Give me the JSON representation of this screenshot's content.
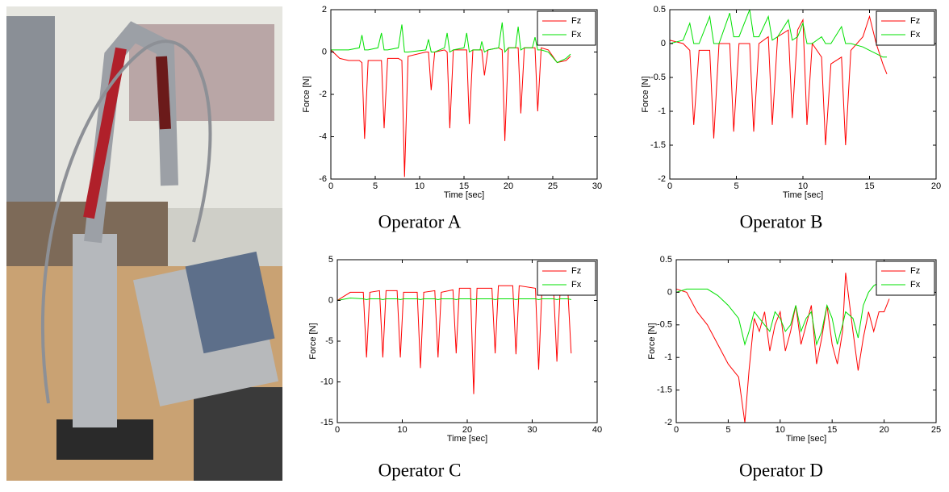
{
  "chart_data": [
    {
      "type": "line",
      "caption": "Operator A",
      "xlabel": "Time [sec]",
      "ylabel": "Force [N]",
      "xlim": [
        0,
        30
      ],
      "xticks": [
        0,
        5,
        10,
        15,
        20,
        25,
        30
      ],
      "ylim": [
        -6,
        2
      ],
      "yticks": [
        -6,
        -4,
        -2,
        0,
        2
      ],
      "legend": "upper right",
      "x": [
        0,
        1,
        2,
        3.2,
        3.5,
        3.8,
        4.2,
        5.3,
        5.7,
        6.0,
        6.4,
        7.6,
        8.0,
        8.3,
        8.7,
        10.7,
        11.0,
        11.3,
        11.7,
        12.8,
        13.1,
        13.4,
        13.8,
        15.0,
        15.3,
        15.6,
        16.0,
        16.8,
        17.0,
        17.3,
        17.7,
        18.9,
        19.3,
        19.6,
        20.0,
        20.8,
        21.1,
        21.4,
        21.8,
        22.7,
        23.0,
        23.3,
        23.7,
        24.5,
        25.5,
        26.5,
        27
      ],
      "series": [
        {
          "name": "Fz",
          "color": "#ff0000",
          "values": [
            0.1,
            -0.3,
            -0.4,
            -0.4,
            -0.5,
            -4.1,
            -0.4,
            -0.4,
            -0.4,
            -3.6,
            -0.3,
            -0.3,
            -0.4,
            -5.9,
            -0.2,
            0,
            0,
            -1.8,
            0,
            0.1,
            0,
            -3.6,
            0.1,
            0.1,
            0.1,
            -3.4,
            0.1,
            0.1,
            0.1,
            -1.1,
            0.1,
            0.2,
            0.1,
            -4.2,
            0.2,
            0.2,
            0.2,
            -2.9,
            0.2,
            0.2,
            0.2,
            -2.8,
            0.2,
            0.1,
            -0.5,
            -0.4,
            -0.2
          ]
        },
        {
          "name": "Fx",
          "color": "#00e000",
          "values": [
            0.1,
            0.1,
            0.1,
            0.2,
            0.8,
            0.1,
            0.1,
            0.2,
            0.9,
            0.1,
            0.1,
            0.2,
            1.3,
            0,
            0,
            0.1,
            0.6,
            0,
            0,
            0.2,
            0.9,
            0,
            0.1,
            0.2,
            0.9,
            0,
            0.1,
            0.1,
            0.5,
            0,
            0.1,
            0.2,
            1.4,
            0,
            0.2,
            0.2,
            1.2,
            0.1,
            0.2,
            0.2,
            0.7,
            0.1,
            0.1,
            0,
            -0.5,
            -0.3,
            -0.1
          ]
        }
      ]
    },
    {
      "type": "line",
      "caption": "Operator B",
      "xlabel": "Time [sec]",
      "ylabel": "Force [N]",
      "xlim": [
        0,
        20
      ],
      "xticks": [
        0,
        5,
        10,
        15,
        20
      ],
      "ylim": [
        -2,
        0.5
      ],
      "yticks": [
        -2,
        -1.5,
        -1,
        -0.5,
        0,
        0.5
      ],
      "legend": "upper right",
      "x": [
        0,
        1,
        1.5,
        1.8,
        2.2,
        3.0,
        3.3,
        3.7,
        4.5,
        4.8,
        5.2,
        6.0,
        6.3,
        6.7,
        7.4,
        7.7,
        8.1,
        8.9,
        9.2,
        9.6,
        10.0,
        10.3,
        10.7,
        11.4,
        11.7,
        12.1,
        12.9,
        13.2,
        13.6,
        14.5,
        15.0,
        15.5,
        16.0,
        16.3
      ],
      "series": [
        {
          "name": "Fz",
          "color": "#ff0000",
          "values": [
            0.05,
            0,
            -0.1,
            -1.2,
            -0.1,
            -0.1,
            -1.4,
            0,
            0,
            -1.3,
            0,
            0,
            -1.3,
            0,
            0.1,
            -1.2,
            0.1,
            0.2,
            -1.1,
            0.2,
            0.35,
            -1.2,
            0,
            -0.2,
            -1.5,
            -0.3,
            -0.2,
            -1.5,
            -0.1,
            0.1,
            0.4,
            0,
            -0.3,
            -0.45
          ]
        },
        {
          "name": "Fx",
          "color": "#00e000",
          "values": [
            0,
            0.05,
            0.3,
            0,
            0,
            0.4,
            0,
            0,
            0.45,
            0.1,
            0.1,
            0.5,
            0.1,
            0.1,
            0.4,
            0.05,
            0.1,
            0.35,
            0.05,
            0.1,
            0.3,
            0,
            0,
            0.1,
            0,
            0,
            0.25,
            0,
            0,
            -0.05,
            -0.1,
            -0.15,
            -0.2,
            -0.2
          ]
        }
      ]
    },
    {
      "type": "line",
      "caption": "Operator C",
      "xlabel": "Time [sec]",
      "ylabel": "Force [N]",
      "xlim": [
        0,
        40
      ],
      "xticks": [
        0,
        10,
        20,
        30,
        40
      ],
      "ylim": [
        -15,
        5
      ],
      "yticks": [
        -15,
        -10,
        -5,
        0,
        5
      ],
      "legend": "upper right",
      "x": [
        0,
        2,
        4,
        4.5,
        5,
        6.5,
        7,
        7.5,
        9.2,
        9.7,
        10.2,
        12.3,
        12.8,
        13.3,
        15,
        15.5,
        16,
        17.8,
        18.3,
        18.8,
        20.5,
        21,
        21.5,
        23.8,
        24.3,
        24.8,
        27,
        27.5,
        28,
        30.5,
        31,
        31.5,
        33.3,
        33.8,
        34.3,
        35.5,
        36
      ],
      "series": [
        {
          "name": "Fz",
          "color": "#ff0000",
          "values": [
            0,
            1,
            1,
            -7,
            1,
            1.2,
            -7,
            1.2,
            1.2,
            -7,
            1,
            1,
            -8.3,
            1,
            1.2,
            -7,
            1,
            1.3,
            -6.5,
            1.5,
            1.5,
            -11.5,
            1.5,
            1.5,
            -6.5,
            1.8,
            1.8,
            -6.6,
            1.8,
            1.5,
            -8.5,
            1.5,
            1.2,
            -7.5,
            1.2,
            1,
            -6.5
          ]
        },
        {
          "name": "Fx",
          "color": "#00e000",
          "values": [
            0,
            0.3,
            0.2,
            0.1,
            0.2,
            0.2,
            0.1,
            0.2,
            0.2,
            0.1,
            0.2,
            0.2,
            0.1,
            0.2,
            0.2,
            0.1,
            0.2,
            0.2,
            0.1,
            0.2,
            0.2,
            0.1,
            0.2,
            0.2,
            0.1,
            0.2,
            0.2,
            0.1,
            0.2,
            0.2,
            0.1,
            0.2,
            0.2,
            0.1,
            0.2,
            0.2,
            0.1
          ]
        }
      ]
    },
    {
      "type": "line",
      "caption": "Operator D",
      "xlabel": "Time [sec]",
      "ylabel": "Force [N]",
      "xlim": [
        0,
        25
      ],
      "xticks": [
        0,
        5,
        10,
        15,
        20,
        25
      ],
      "ylim": [
        -2,
        0.5
      ],
      "yticks": [
        -2,
        -1.5,
        -1,
        -0.5,
        0,
        0.5
      ],
      "legend": "upper right",
      "x": [
        0,
        1,
        2,
        3,
        4,
        5,
        6,
        6.6,
        7,
        7.5,
        8,
        8.5,
        9,
        9.5,
        10,
        10.5,
        11,
        11.5,
        12,
        12.5,
        13,
        13.5,
        14,
        14.5,
        15,
        15.5,
        16,
        16.3,
        17,
        17.5,
        18,
        18.5,
        19,
        19.5,
        20,
        20.5
      ],
      "series": [
        {
          "name": "Fz",
          "color": "#ff0000",
          "values": [
            0.05,
            0,
            -0.3,
            -0.5,
            -0.8,
            -1.1,
            -1.3,
            -2,
            -1.2,
            -0.4,
            -0.6,
            -0.3,
            -0.9,
            -0.5,
            -0.3,
            -0.9,
            -0.6,
            -0.2,
            -0.8,
            -0.5,
            -0.2,
            -1.1,
            -0.7,
            -0.2,
            -0.8,
            -1.1,
            -0.6,
            0.3,
            -0.6,
            -1.2,
            -0.7,
            -0.3,
            -0.6,
            -0.3,
            -0.3,
            -0.1
          ]
        },
        {
          "name": "Fx",
          "color": "#00e000",
          "values": [
            0,
            0.05,
            0.05,
            0.05,
            -0.05,
            -0.2,
            -0.4,
            -0.8,
            -0.6,
            -0.3,
            -0.4,
            -0.5,
            -0.6,
            -0.3,
            -0.4,
            -0.6,
            -0.5,
            -0.2,
            -0.6,
            -0.4,
            -0.3,
            -0.8,
            -0.6,
            -0.2,
            -0.4,
            -0.8,
            -0.5,
            -0.3,
            -0.4,
            -0.7,
            -0.2,
            0,
            0.1,
            0.15,
            0.1,
            0.05
          ]
        }
      ]
    }
  ]
}
